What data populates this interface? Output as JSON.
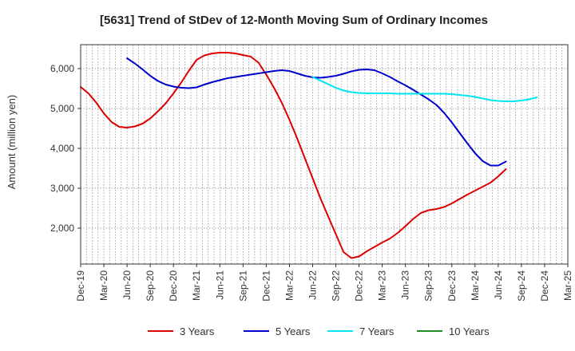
{
  "chart_data": {
    "type": "line",
    "title": "[5631]  Trend of StDev of 12-Month Moving Sum of Ordinary Incomes",
    "xlabel": "",
    "ylabel": "Amount (million yen)",
    "ylim": [
      1100,
      6600
    ],
    "y_ticks": [
      2000,
      3000,
      4000,
      5000,
      6000
    ],
    "y_tick_labels": [
      "2,000",
      "3,000",
      "4,000",
      "5,000",
      "6,000"
    ],
    "x_tick_labels": [
      "Dec-19",
      "Mar-20",
      "Jun-20",
      "Sep-20",
      "Dec-20",
      "Mar-21",
      "Jun-21",
      "Sep-21",
      "Dec-21",
      "Mar-22",
      "Jun-22",
      "Sep-22",
      "Dec-22",
      "Mar-23",
      "Jun-23",
      "Sep-23",
      "Dec-23",
      "Mar-24",
      "Jun-24",
      "Sep-24",
      "Dec-24",
      "Mar-25"
    ],
    "grid": true,
    "legend_position": "bottom",
    "series": [
      {
        "name": "3 Years",
        "color": "#dd0000",
        "start_index": 0,
        "values": [
          5540,
          5380,
          5150,
          4880,
          4660,
          4540,
          4520,
          4550,
          4620,
          4750,
          4930,
          5130,
          5380,
          5650,
          5950,
          6220,
          6330,
          6380,
          6400,
          6400,
          6380,
          6340,
          6300,
          6150,
          5850,
          5520,
          5150,
          4720,
          4250,
          3750,
          3250,
          2750,
          2300,
          1850,
          1400,
          1250,
          1290,
          1420,
          1530,
          1640,
          1740,
          1880,
          2050,
          2230,
          2380,
          2450,
          2480,
          2530,
          2620,
          2730,
          2840,
          2940,
          3040,
          3140,
          3300,
          3480
        ]
      },
      {
        "name": "5 Years",
        "color": "#0000cc",
        "start_index": 6,
        "values": [
          6260,
          6130,
          5980,
          5820,
          5690,
          5600,
          5550,
          5520,
          5510,
          5530,
          5600,
          5660,
          5710,
          5760,
          5790,
          5820,
          5850,
          5880,
          5910,
          5940,
          5960,
          5940,
          5880,
          5820,
          5780,
          5770,
          5790,
          5820,
          5870,
          5930,
          5970,
          5980,
          5960,
          5880,
          5790,
          5680,
          5580,
          5470,
          5350,
          5230,
          5090,
          4890,
          4650,
          4390,
          4130,
          3880,
          3680,
          3570,
          3570,
          3670
        ]
      },
      {
        "name": "7 Years",
        "color": "#00e5ee",
        "start_index": 30,
        "values": [
          5790,
          5700,
          5610,
          5520,
          5450,
          5410,
          5390,
          5380,
          5380,
          5380,
          5380,
          5370,
          5370,
          5370,
          5370,
          5370,
          5370,
          5370,
          5360,
          5340,
          5320,
          5290,
          5250,
          5210,
          5190,
          5180,
          5180,
          5200,
          5230,
          5280
        ]
      },
      {
        "name": "10 Years",
        "color": "#228b22",
        "start_index": 0,
        "values": []
      }
    ]
  }
}
